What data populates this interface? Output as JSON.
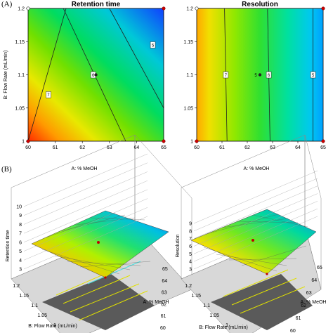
{
  "panel_labels": {
    "a": "(A)",
    "b": "(B)"
  },
  "chart_data": [
    {
      "type": "heatmap",
      "title": "Retention time",
      "xlabel": "",
      "ylabel": "B: Flow Rate (mL/min)",
      "x_ticks": [
        "60",
        "61",
        "62",
        "63",
        "64",
        "65"
      ],
      "y_ticks": [
        "1",
        "1.05",
        "1.1",
        "1.15",
        "1.2"
      ],
      "xlim": [
        60,
        65
      ],
      "ylim": [
        1,
        1.2
      ],
      "contours": [
        {
          "label": "7",
          "points": [
            [
              60.0,
              1.0
            ],
            [
              61.4,
              1.2
            ]
          ],
          "label_pos": [
            60.75,
            1.07
          ]
        },
        {
          "label": "6",
          "points": [
            [
              61.3,
              1.2
            ],
            [
              63.6,
              1.0
            ]
          ],
          "label_pos": [
            62.4,
            1.1
          ]
        },
        {
          "label": "5",
          "points": [
            [
              63.0,
              1.2
            ],
            [
              65.0,
              1.05
            ]
          ],
          "label_pos": [
            64.6,
            1.145
          ]
        }
      ],
      "center_point": [
        62.5,
        1.1
      ],
      "design_points": [
        [
          60,
          1
        ],
        [
          65,
          1
        ],
        [
          60,
          1.2
        ],
        [
          65,
          1.2
        ]
      ],
      "design_points_hollow": [
        [
          60,
          1.2
        ]
      ]
    },
    {
      "type": "heatmap",
      "title": "Resolution",
      "xlabel": "",
      "ylabel": "",
      "x_ticks": [
        "60",
        "61",
        "62",
        "63",
        "64",
        "65"
      ],
      "y_ticks": [
        "1",
        "1.05",
        "1.1",
        "1.15",
        "1.2"
      ],
      "xlim": [
        60,
        65
      ],
      "ylim": [
        1,
        1.2
      ],
      "contours": [
        {
          "label": "7",
          "points": [
            [
              61.2,
              1.0
            ],
            [
              61.1,
              1.2
            ]
          ],
          "label_pos": [
            61.15,
            1.1
          ]
        },
        {
          "label": "6",
          "points": [
            [
              62.9,
              1.0
            ],
            [
              62.8,
              1.2
            ]
          ],
          "label_pos": [
            62.85,
            1.1
          ]
        },
        {
          "label": "5",
          "points": [
            [
              64.6,
              1.0
            ],
            [
              64.6,
              1.2
            ]
          ],
          "label_pos": [
            64.6,
            1.1
          ]
        }
      ],
      "center_point": [
        62.5,
        1.1
      ],
      "center_label": "5",
      "design_points": [
        [
          60,
          1
        ],
        [
          65,
          1
        ],
        [
          60,
          1.2
        ],
        [
          65,
          1.2
        ]
      ],
      "design_points_hollow": [
        [
          60,
          1.2
        ]
      ]
    },
    {
      "type": "surface",
      "title": "A: % MeOH",
      "xlabel": "B: Flow Rate (mL/min)",
      "ylabel": "A: % MeOH",
      "zlabel": "Retention time",
      "x_ticks": [
        "1.2",
        "1.15",
        "1.1",
        "1.05",
        "1"
      ],
      "y_ticks": [
        "60",
        "61",
        "62",
        "63",
        "64",
        "65"
      ],
      "z_ticks": [
        "3",
        "4",
        "5",
        "6",
        "7",
        "8",
        "9",
        "10"
      ],
      "zlim": [
        3,
        10
      ]
    },
    {
      "type": "surface",
      "title": "A: % MeOH",
      "xlabel": "B: Flow Rate (mL/min)",
      "ylabel": "A: % MeOH",
      "zlabel": "Resolution",
      "x_ticks": [
        "1.2",
        "1.15",
        "1.1",
        "1.05",
        "1"
      ],
      "y_ticks": [
        "60",
        "61",
        "62",
        "63",
        "64",
        "65"
      ],
      "z_ticks": [
        "3",
        "4",
        "5",
        "6",
        "7",
        "8",
        "9"
      ],
      "zlim": [
        3,
        9
      ]
    }
  ]
}
